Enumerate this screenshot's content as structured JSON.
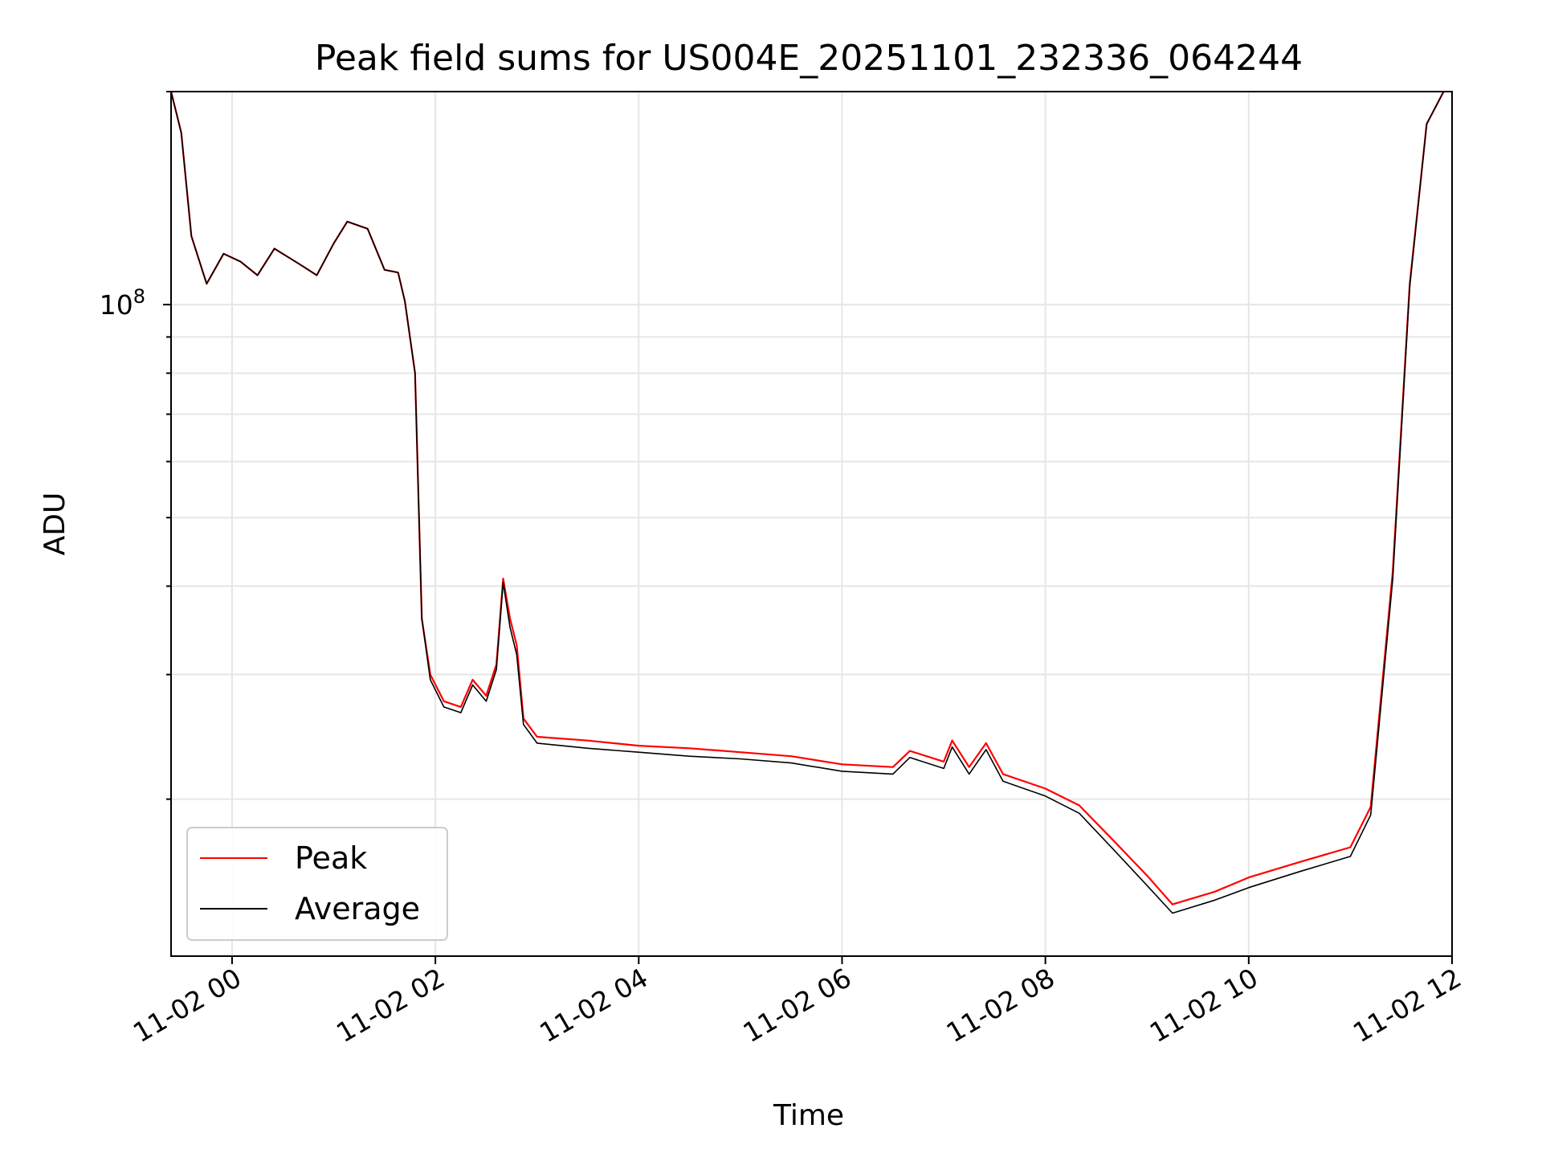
{
  "chart_data": {
    "type": "line",
    "title": "Peak field sums for US004E_20251101_232336_064244",
    "xlabel": "Time",
    "ylabel": "ADU",
    "y_scale": "log",
    "x_range": [
      "11-01 23:24",
      "11-02 12:00"
    ],
    "ylim": [
      12000000,
      200000000
    ],
    "x_ticks": [
      "11-02 00",
      "11-02 02",
      "11-02 04",
      "11-02 06",
      "11-02 08",
      "11-02 10",
      "11-02 12"
    ],
    "y_ticks_labeled": [
      {
        "value": 100000000,
        "base": "10",
        "exponent": "8"
      }
    ],
    "grid": true,
    "legend_position": "lower-left",
    "series": [
      {
        "name": "Peak",
        "color": "#ff0000",
        "points": [
          [
            "23:24",
            200000000
          ],
          [
            "23:30",
            175000000
          ],
          [
            "23:36",
            125000000
          ],
          [
            "23:45",
            107000000
          ],
          [
            "23:55",
            118000000
          ],
          [
            "00:05",
            115000000
          ],
          [
            "00:15",
            110000000
          ],
          [
            "00:25",
            120000000
          ],
          [
            "00:40",
            114000000
          ],
          [
            "00:50",
            110000000
          ],
          [
            "01:00",
            122000000
          ],
          [
            "01:08",
            131000000
          ],
          [
            "01:20",
            128000000
          ],
          [
            "01:30",
            112000000
          ],
          [
            "01:38",
            111000000
          ],
          [
            "01:42",
            101000000
          ],
          [
            "01:48",
            80000000
          ],
          [
            "01:52",
            36000000
          ],
          [
            "01:57",
            30000000
          ],
          [
            "02:05",
            27500000
          ],
          [
            "02:15",
            27000000
          ],
          [
            "02:22",
            29500000
          ],
          [
            "02:30",
            28000000
          ],
          [
            "02:36",
            31000000
          ],
          [
            "02:40",
            41000000
          ],
          [
            "02:44",
            36000000
          ],
          [
            "02:48",
            33000000
          ],
          [
            "02:52",
            26000000
          ],
          [
            "03:00",
            24500000
          ],
          [
            "03:30",
            24200000
          ],
          [
            "04:00",
            23800000
          ],
          [
            "04:30",
            23600000
          ],
          [
            "05:00",
            23300000
          ],
          [
            "05:30",
            23000000
          ],
          [
            "06:00",
            22400000
          ],
          [
            "06:30",
            22200000
          ],
          [
            "06:40",
            23400000
          ],
          [
            "07:00",
            22600000
          ],
          [
            "07:05",
            24200000
          ],
          [
            "07:15",
            22200000
          ],
          [
            "07:25",
            24000000
          ],
          [
            "07:35",
            21700000
          ],
          [
            "08:00",
            20700000
          ],
          [
            "08:20",
            19600000
          ],
          [
            "08:40",
            17500000
          ],
          [
            "09:00",
            15600000
          ],
          [
            "09:15",
            14200000
          ],
          [
            "09:40",
            14800000
          ],
          [
            "10:00",
            15500000
          ],
          [
            "10:30",
            16300000
          ],
          [
            "11:00",
            17100000
          ],
          [
            "11:12",
            19500000
          ],
          [
            "11:25",
            42000000
          ],
          [
            "11:35",
            107000000
          ],
          [
            "11:45",
            180000000
          ],
          [
            "11:55",
            200000000
          ]
        ]
      },
      {
        "name": "Average",
        "color": "#000000",
        "points": [
          [
            "23:24",
            200000000
          ],
          [
            "23:30",
            175000000
          ],
          [
            "23:36",
            125000000
          ],
          [
            "23:45",
            107000000
          ],
          [
            "23:55",
            118000000
          ],
          [
            "00:05",
            115000000
          ],
          [
            "00:15",
            110000000
          ],
          [
            "00:25",
            120000000
          ],
          [
            "00:40",
            114000000
          ],
          [
            "00:50",
            110000000
          ],
          [
            "01:00",
            122000000
          ],
          [
            "01:08",
            131000000
          ],
          [
            "01:20",
            128000000
          ],
          [
            "01:30",
            112000000
          ],
          [
            "01:38",
            111000000
          ],
          [
            "01:42",
            101000000
          ],
          [
            "01:48",
            80000000
          ],
          [
            "01:52",
            36000000
          ],
          [
            "01:57",
            29500000
          ],
          [
            "02:05",
            27000000
          ],
          [
            "02:15",
            26500000
          ],
          [
            "02:22",
            29000000
          ],
          [
            "02:30",
            27500000
          ],
          [
            "02:36",
            30500000
          ],
          [
            "02:40",
            40500000
          ],
          [
            "02:44",
            35000000
          ],
          [
            "02:48",
            32000000
          ],
          [
            "02:52",
            25500000
          ],
          [
            "03:00",
            24000000
          ],
          [
            "03:30",
            23600000
          ],
          [
            "04:00",
            23300000
          ],
          [
            "04:30",
            23000000
          ],
          [
            "05:00",
            22800000
          ],
          [
            "05:30",
            22500000
          ],
          [
            "06:00",
            21900000
          ],
          [
            "06:30",
            21700000
          ],
          [
            "06:40",
            22900000
          ],
          [
            "07:00",
            22100000
          ],
          [
            "07:05",
            23700000
          ],
          [
            "07:15",
            21700000
          ],
          [
            "07:25",
            23500000
          ],
          [
            "07:35",
            21200000
          ],
          [
            "08:00",
            20200000
          ],
          [
            "08:20",
            19100000
          ],
          [
            "08:40",
            17000000
          ],
          [
            "09:00",
            15100000
          ],
          [
            "09:15",
            13800000
          ],
          [
            "09:40",
            14400000
          ],
          [
            "10:00",
            15000000
          ],
          [
            "10:30",
            15800000
          ],
          [
            "11:00",
            16600000
          ],
          [
            "11:12",
            19000000
          ],
          [
            "11:25",
            41000000
          ],
          [
            "11:35",
            106000000
          ],
          [
            "11:45",
            180000000
          ],
          [
            "11:55",
            200000000
          ]
        ]
      }
    ]
  }
}
